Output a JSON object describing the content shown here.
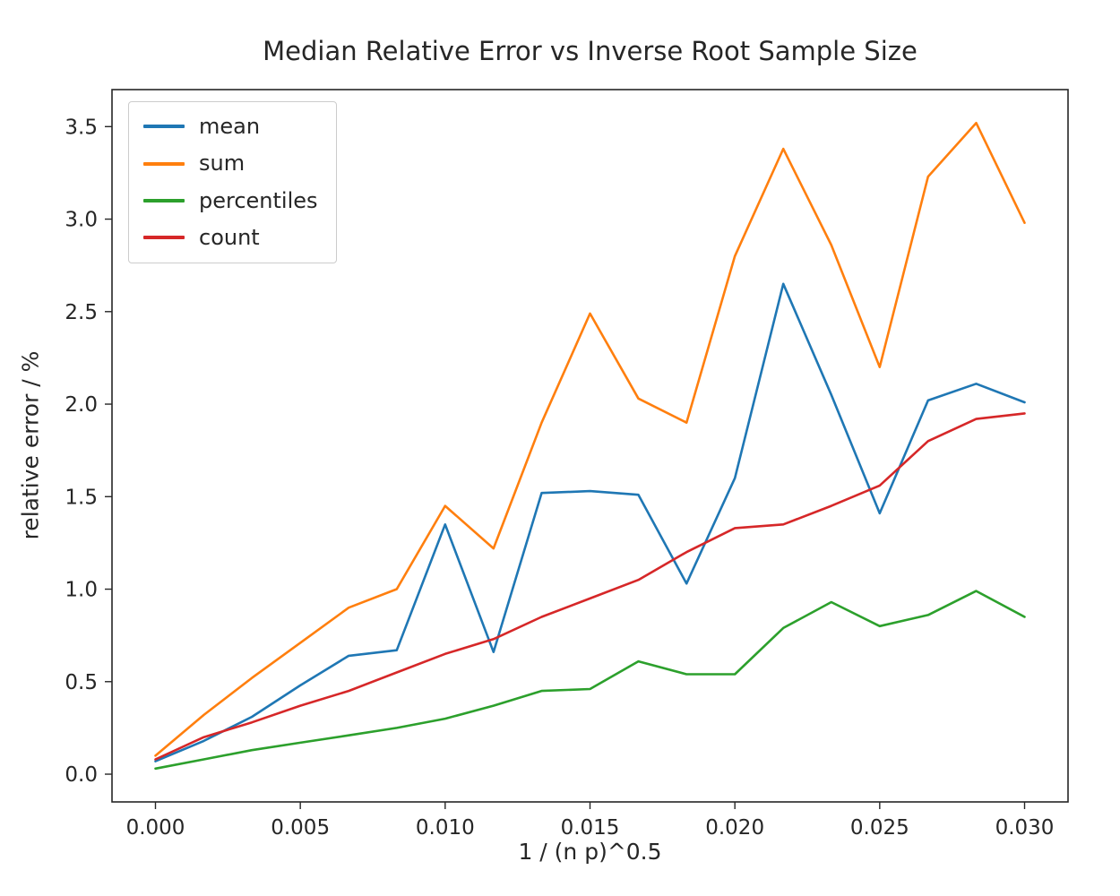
{
  "chart_data": {
    "type": "line",
    "title": "Median Relative Error vs Inverse Root Sample Size",
    "xlabel": "1 / (n p)^0.5",
    "ylabel": "relative error / %",
    "grid": false,
    "legend_position": "upper left",
    "xlim": [
      -0.0015,
      0.0315
    ],
    "ylim": [
      -0.15,
      3.7
    ],
    "x": [
      0.0,
      0.00167,
      0.00333,
      0.005,
      0.00667,
      0.00833,
      0.01,
      0.01167,
      0.01333,
      0.015,
      0.01667,
      0.01833,
      0.02,
      0.02167,
      0.02333,
      0.025,
      0.02667,
      0.02833,
      0.03
    ],
    "series": [
      {
        "name": "mean",
        "color": "#1f77b4",
        "values": [
          0.07,
          0.18,
          0.31,
          0.48,
          0.64,
          0.67,
          1.35,
          0.66,
          1.52,
          1.53,
          1.51,
          1.03,
          1.6,
          2.65,
          2.05,
          1.41,
          2.02,
          2.11,
          2.01
        ]
      },
      {
        "name": "sum",
        "color": "#ff7f0e",
        "values": [
          0.1,
          0.32,
          0.52,
          0.71,
          0.9,
          1.0,
          1.45,
          1.22,
          1.9,
          2.49,
          2.03,
          1.9,
          2.8,
          3.38,
          2.86,
          2.2,
          3.23,
          3.52,
          2.98
        ]
      },
      {
        "name": "percentiles",
        "color": "#2ca02c",
        "values": [
          0.03,
          0.08,
          0.13,
          0.17,
          0.21,
          0.25,
          0.3,
          0.37,
          0.45,
          0.46,
          0.61,
          0.54,
          0.54,
          0.79,
          0.93,
          0.8,
          0.86,
          0.99,
          0.85
        ]
      },
      {
        "name": "count",
        "color": "#d62728",
        "values": [
          0.08,
          0.2,
          0.28,
          0.37,
          0.45,
          0.55,
          0.65,
          0.73,
          0.85,
          0.95,
          1.05,
          1.2,
          1.33,
          1.35,
          1.45,
          1.56,
          1.8,
          1.92,
          1.95
        ]
      }
    ],
    "xticks": {
      "values": [
        0.0,
        0.005,
        0.01,
        0.015,
        0.02,
        0.025,
        0.03
      ],
      "labels": [
        "0.000",
        "0.005",
        "0.010",
        "0.015",
        "0.020",
        "0.025",
        "0.030"
      ]
    },
    "yticks": {
      "values": [
        0.0,
        0.5,
        1.0,
        1.5,
        2.0,
        2.5,
        3.0,
        3.5
      ],
      "labels": [
        "0.0",
        "0.5",
        "1.0",
        "1.5",
        "2.0",
        "2.5",
        "3.0",
        "3.5"
      ]
    }
  }
}
